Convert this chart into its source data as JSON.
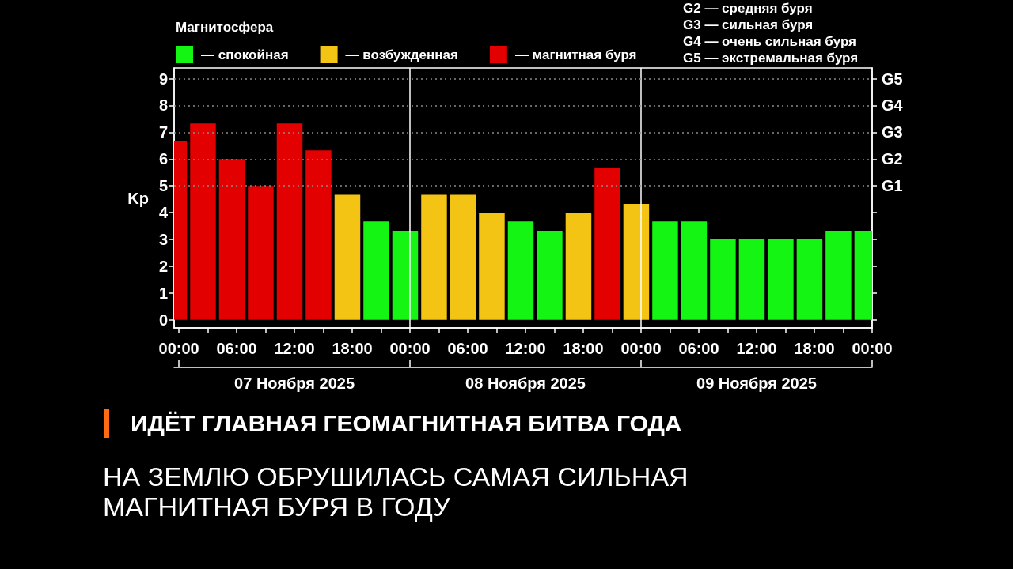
{
  "chart_data": {
    "type": "bar",
    "title": "ИДЁТ ГЛАВНАЯ ГЕОМАГНИТНАЯ БИТВА ГОДА",
    "subtitle": "НА ЗЕМЛЮ ОБРУШИЛАСЬ САМАЯ СИЛЬНАЯ МАГНИТНАЯ БУРЯ В ГОДУ",
    "ylabel": "Kp",
    "legend_title": "Магнитосфера",
    "legend": "top left",
    "x": [
      "2025-11-06T23:30",
      "2025-11-07T02:30",
      "2025-11-07T05:30",
      "2025-11-07T08:30",
      "2025-11-07T11:30",
      "2025-11-07T14:30",
      "2025-11-07T17:30",
      "2025-11-07T20:30",
      "2025-11-07T23:30",
      "2025-11-08T02:30",
      "2025-11-08T05:30",
      "2025-11-08T08:30",
      "2025-11-08T11:30",
      "2025-11-08T14:30",
      "2025-11-08T17:30",
      "2025-11-08T20:30",
      "2025-11-08T23:30",
      "2025-11-09T02:30",
      "2025-11-09T05:30",
      "2025-11-09T08:30",
      "2025-11-09T11:30",
      "2025-11-09T14:30",
      "2025-11-09T17:30",
      "2025-11-09T20:30",
      "2025-11-09T23:30"
    ],
    "xlim": [
      "2025-11-06T23:30",
      "2025-11-10T00:00"
    ],
    "xticks": [
      {
        "value": "2025-11-07T00:00",
        "label": "00:00"
      },
      {
        "value": "2025-11-07T03:00",
        "label": null
      },
      {
        "value": "2025-11-07T06:00",
        "label": "06:00"
      },
      {
        "value": "2025-11-07T09:00",
        "label": null
      },
      {
        "value": "2025-11-07T12:00",
        "label": "12:00"
      },
      {
        "value": "2025-11-07T15:00",
        "label": null
      },
      {
        "value": "2025-11-07T18:00",
        "label": "18:00"
      },
      {
        "value": "2025-11-07T21:00",
        "label": null
      },
      {
        "value": "2025-11-08T00:00",
        "label": "00:00"
      },
      {
        "value": "2025-11-08T03:00",
        "label": null
      },
      {
        "value": "2025-11-08T06:00",
        "label": "06:00"
      },
      {
        "value": "2025-11-08T09:00",
        "label": null
      },
      {
        "value": "2025-11-08T12:00",
        "label": "12:00"
      },
      {
        "value": "2025-11-08T15:00",
        "label": null
      },
      {
        "value": "2025-11-08T18:00",
        "label": "18:00"
      },
      {
        "value": "2025-11-08T21:00",
        "label": null
      },
      {
        "value": "2025-11-09T00:00",
        "label": "00:00"
      },
      {
        "value": "2025-11-09T03:00",
        "label": null
      },
      {
        "value": "2025-11-09T06:00",
        "label": "06:00"
      },
      {
        "value": "2025-11-09T09:00",
        "label": null
      },
      {
        "value": "2025-11-09T12:00",
        "label": "12:00"
      },
      {
        "value": "2025-11-09T15:00",
        "label": null
      },
      {
        "value": "2025-11-09T18:00",
        "label": "18:00"
      },
      {
        "value": "2025-11-09T21:00",
        "label": null
      },
      {
        "value": "2025-11-10T00:00",
        "label": "00:00"
      }
    ],
    "ylim": [
      -0.3,
      9.4
    ],
    "yticks": [
      0,
      1,
      2,
      3,
      4,
      5,
      6,
      7,
      8,
      9
    ],
    "series": [
      {
        "name": "— спокойная",
        "color": "#14f514",
        "values": [
          null,
          null,
          null,
          null,
          null,
          null,
          null,
          3.67,
          3.33,
          null,
          null,
          null,
          3.67,
          3.33,
          null,
          null,
          null,
          3.67,
          3.67,
          3.0,
          3.0,
          3.0,
          3.0,
          3.33,
          3.33
        ]
      },
      {
        "name": "— возбужденная",
        "color": "#f4c414",
        "values": [
          null,
          null,
          null,
          null,
          null,
          null,
          4.67,
          null,
          null,
          4.67,
          4.67,
          4.0,
          null,
          null,
          4.0,
          null,
          4.33,
          null,
          null,
          null,
          null,
          null,
          null,
          null,
          null
        ]
      },
      {
        "name": "— магнитная буря",
        "color": "#e30000",
        "values": [
          6.67,
          7.33,
          6.0,
          5.0,
          7.33,
          6.33,
          null,
          null,
          null,
          null,
          null,
          null,
          null,
          null,
          null,
          5.67,
          null,
          null,
          null,
          null,
          null,
          null,
          null,
          null,
          null
        ]
      }
    ],
    "ref_lines": [
      {
        "axis": "x",
        "value": "2025-11-08T00:00",
        "color": "#ffffff",
        "line_style": "solid"
      },
      {
        "axis": "x",
        "value": "2025-11-09T00:00",
        "color": "#ffffff",
        "line_style": "solid"
      },
      {
        "axis": "y",
        "value": 5,
        "label": "G1",
        "color": "#8a8a8a",
        "line_style": "dotted"
      },
      {
        "axis": "y",
        "value": 6,
        "label": "G2",
        "color": "#8a8a8a",
        "line_style": "dotted"
      },
      {
        "axis": "y",
        "value": 7,
        "label": "G3",
        "color": "#8a8a8a",
        "line_style": "dotted"
      },
      {
        "axis": "y",
        "value": 8,
        "label": "G4",
        "color": "#8a8a8a",
        "line_style": "dotted"
      },
      {
        "axis": "y",
        "value": 9,
        "label": "G5",
        "color": "#8a8a8a",
        "line_style": "dotted"
      }
    ],
    "annotations": [
      "G2 — средняя буря",
      "G3 — сильная буря",
      "G4 — очень сильная буря",
      "G5 — экстремальная буря",
      "07 Ноября 2025",
      "08 Ноября 2025",
      "09 Ноября 2025"
    ]
  }
}
